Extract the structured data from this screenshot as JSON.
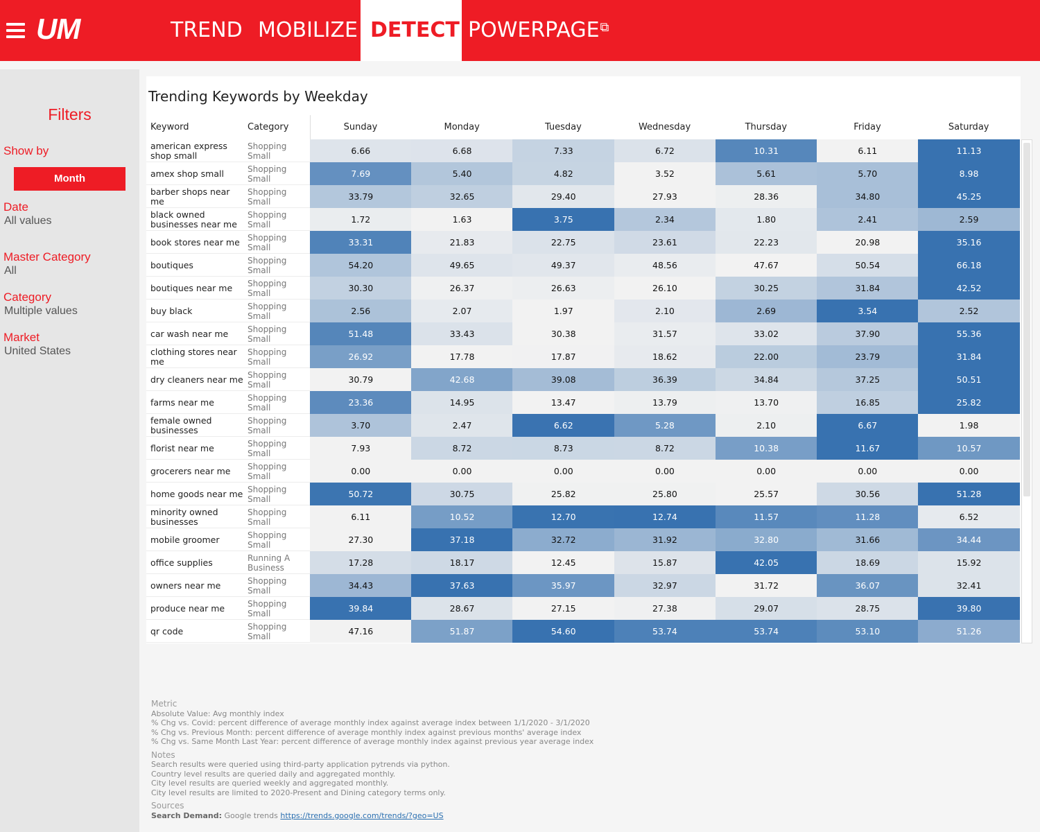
{
  "nav": {
    "logo": "UM",
    "tabs": [
      "TREND",
      "MOBILIZE",
      "DETECT",
      "POWERPAGE"
    ],
    "active_tab": "DETECT",
    "external_icon": "external-link-icon"
  },
  "sidebar": {
    "title": "Filters",
    "show_by_label": "Show by",
    "show_by_value": "Month",
    "filters": [
      {
        "label": "Date",
        "value": "All values"
      },
      {
        "label": "Master Category",
        "value": "All"
      },
      {
        "label": "Category",
        "value": "Multiple values"
      },
      {
        "label": "Market",
        "value": "United States"
      }
    ]
  },
  "chart_data": {
    "type": "heatmap",
    "title": "Trending Keywords by Weekday",
    "columns": [
      "Keyword",
      "Category"
    ],
    "days": [
      "Sunday",
      "Monday",
      "Tuesday",
      "Wednesday",
      "Thursday",
      "Friday",
      "Saturday"
    ],
    "rows": [
      {
        "keyword": "american express shop small",
        "category": "Shopping Small",
        "values": [
          6.66,
          6.68,
          7.33,
          6.72,
          10.31,
          6.11,
          11.13
        ],
        "display": [
          "6.66",
          "6.68",
          "7.33",
          "6.72",
          "10.31",
          "6.11",
          "11.13"
        ]
      },
      {
        "keyword": "amex shop small",
        "category": "Shopping Small",
        "values": [
          7.69,
          5.4,
          4.82,
          3.52,
          5.61,
          5.7,
          8.98
        ],
        "display": [
          "7.69",
          "5.40",
          "4.82",
          "3.52",
          "5.61",
          "5.70",
          "8.98"
        ]
      },
      {
        "keyword": "barber shops near me",
        "category": "Shopping Small",
        "values": [
          33.79,
          32.65,
          29.4,
          27.93,
          28.36,
          34.8,
          45.25
        ],
        "display": [
          "33.79",
          "32.65",
          "29.40",
          "27.93",
          "28.36",
          "34.80",
          "45.25"
        ]
      },
      {
        "keyword": "black owned businesses near me",
        "category": "Shopping Small",
        "values": [
          1.72,
          1.63,
          3.75,
          2.34,
          1.8,
          2.41,
          2.59
        ],
        "display": [
          "1.72",
          "1.63",
          "3.75",
          "2.34",
          "1.80",
          "2.41",
          "2.59"
        ]
      },
      {
        "keyword": "book stores near me",
        "category": "Shopping Small",
        "values": [
          33.31,
          21.83,
          22.75,
          23.61,
          22.23,
          20.98,
          35.16
        ],
        "display": [
          "33.31",
          "21.83",
          "22.75",
          "23.61",
          "22.23",
          "20.98",
          "35.16"
        ]
      },
      {
        "keyword": "boutiques",
        "category": "Shopping Small",
        "values": [
          54.2,
          49.65,
          49.37,
          48.56,
          47.67,
          50.54,
          66.18
        ],
        "display": [
          "54.20",
          "49.65",
          "49.37",
          "48.56",
          "47.67",
          "50.54",
          "66.18"
        ]
      },
      {
        "keyword": "boutiques near me",
        "category": "Shopping Small",
        "values": [
          30.3,
          26.37,
          26.63,
          26.1,
          30.25,
          31.84,
          42.52
        ],
        "display": [
          "30.30",
          "26.37",
          "26.63",
          "26.10",
          "30.25",
          "31.84",
          "42.52"
        ]
      },
      {
        "keyword": "buy black",
        "category": "Shopping Small",
        "values": [
          2.56,
          2.07,
          1.97,
          2.1,
          2.69,
          3.54,
          2.52
        ],
        "display": [
          "2.56",
          "2.07",
          "1.97",
          "2.10",
          "2.69",
          "3.54",
          "2.52"
        ]
      },
      {
        "keyword": "car wash near me",
        "category": "Shopping Small",
        "values": [
          51.48,
          33.43,
          30.38,
          31.57,
          33.02,
          37.9,
          55.36
        ],
        "display": [
          "51.48",
          "33.43",
          "30.38",
          "31.57",
          "33.02",
          "37.90",
          "55.36"
        ]
      },
      {
        "keyword": "clothing stores near me",
        "category": "Shopping Small",
        "values": [
          26.92,
          17.78,
          17.87,
          18.62,
          22.0,
          23.79,
          31.84
        ],
        "display": [
          "26.92",
          "17.78",
          "17.87",
          "18.62",
          "22.00",
          "23.79",
          "31.84"
        ]
      },
      {
        "keyword": "dry cleaners near me",
        "category": "Shopping Small",
        "values": [
          30.79,
          42.68,
          39.08,
          36.39,
          34.84,
          37.25,
          50.51
        ],
        "display": [
          "30.79",
          "42.68",
          "39.08",
          "36.39",
          "34.84",
          "37.25",
          "50.51"
        ]
      },
      {
        "keyword": "farms near me",
        "category": "Shopping Small",
        "values": [
          23.36,
          14.95,
          13.47,
          13.79,
          13.7,
          16.85,
          25.82
        ],
        "display": [
          "23.36",
          "14.95",
          "13.47",
          "13.79",
          "13.70",
          "16.85",
          "25.82"
        ]
      },
      {
        "keyword": "female owned businesses",
        "category": "Shopping Small",
        "values": [
          3.7,
          2.47,
          6.62,
          5.28,
          2.1,
          6.67,
          1.98
        ],
        "display": [
          "3.70",
          "2.47",
          "6.62",
          "5.28",
          "2.10",
          "6.67",
          "1.98"
        ]
      },
      {
        "keyword": "florist near me",
        "category": "Shopping Small",
        "values": [
          7.93,
          8.72,
          8.73,
          8.72,
          10.38,
          11.67,
          10.57
        ],
        "display": [
          "7.93",
          "8.72",
          "8.73",
          "8.72",
          "10.38",
          "11.67",
          "10.57"
        ]
      },
      {
        "keyword": "grocerers near me",
        "category": "Shopping Small",
        "values": [
          0,
          0,
          0,
          0,
          0,
          0,
          0
        ],
        "display": [
          "0.00",
          "0.00",
          "0.00",
          "0.00",
          "0.00",
          "0.00",
          "0.00"
        ]
      },
      {
        "keyword": "home goods near me",
        "category": "Shopping Small",
        "values": [
          50.72,
          30.75,
          25.82,
          25.8,
          25.57,
          30.56,
          51.28
        ],
        "display": [
          "50.72",
          "30.75",
          "25.82",
          "25.80",
          "25.57",
          "30.56",
          "51.28"
        ]
      },
      {
        "keyword": "minority owned businesses",
        "category": "Shopping Small",
        "values": [
          6.11,
          10.52,
          12.7,
          12.74,
          11.57,
          11.28,
          6.52
        ],
        "display": [
          "6.11",
          "10.52",
          "12.70",
          "12.74",
          "11.57",
          "11.28",
          "6.52"
        ]
      },
      {
        "keyword": "mobile groomer",
        "category": "Shopping Small",
        "values": [
          27.3,
          37.18,
          32.72,
          31.92,
          32.8,
          31.66,
          34.44
        ],
        "display": [
          "27.30",
          "37.18",
          "32.72",
          "31.92",
          "32.80",
          "31.66",
          "34.44"
        ]
      },
      {
        "keyword": "office supplies",
        "category": "Running A Business",
        "values": [
          17.28,
          18.17,
          12.45,
          15.87,
          42.05,
          18.69,
          15.92
        ],
        "display": [
          "17.28",
          "18.17",
          "12.45",
          "15.87",
          "42.05",
          "18.69",
          "15.92"
        ]
      },
      {
        "keyword": "owners near me",
        "category": "Shopping Small",
        "values": [
          34.43,
          37.63,
          35.97,
          32.97,
          31.72,
          36.07,
          32.41
        ],
        "display": [
          "34.43",
          "37.63",
          "35.97",
          "32.97",
          "31.72",
          "36.07",
          "32.41"
        ]
      },
      {
        "keyword": "produce near me",
        "category": "Shopping Small",
        "values": [
          39.84,
          28.67,
          27.15,
          27.38,
          29.07,
          28.75,
          39.8
        ],
        "display": [
          "39.84",
          "28.67",
          "27.15",
          "27.38",
          "29.07",
          "28.75",
          "39.80"
        ]
      },
      {
        "keyword": "qr code",
        "category": "Shopping Small",
        "values": [
          47.16,
          51.87,
          54.6,
          53.74,
          53.74,
          53.1,
          51.26
        ],
        "display": [
          "47.16",
          "51.87",
          "54.60",
          "53.74",
          "53.74",
          "53.10",
          "51.26"
        ]
      }
    ],
    "color_scale": {
      "low": "#f2f2f2",
      "high": "#3872b0"
    }
  },
  "footer": {
    "metric_head": "Metric",
    "metric_lines": [
      "Absolute Value: Avg monthly index",
      "% Chg vs. Covid: percent difference of average monthly index against average index between 1/1/2020 - 3/1/2020",
      "% Chg vs. Previous Month: percent difference of average monthly index against previous months' average index",
      "% Chg vs. Same Month Last Year: percent difference of average monthly index against previous year average index"
    ],
    "notes_head": "Notes",
    "notes_lines": [
      "Search results were queried using third-party application pytrends via python.",
      "Country level results are queried daily and aggregated monthly.",
      "City level results are queried weekly and aggregated monthly.",
      "City level results are limited to 2020-Present and Dining category terms only."
    ],
    "sources_head": "Sources",
    "sources_label": "Search Demand:",
    "sources_text": "Google trends",
    "sources_link": "https://trends.google.com/trends/?geo=US"
  }
}
